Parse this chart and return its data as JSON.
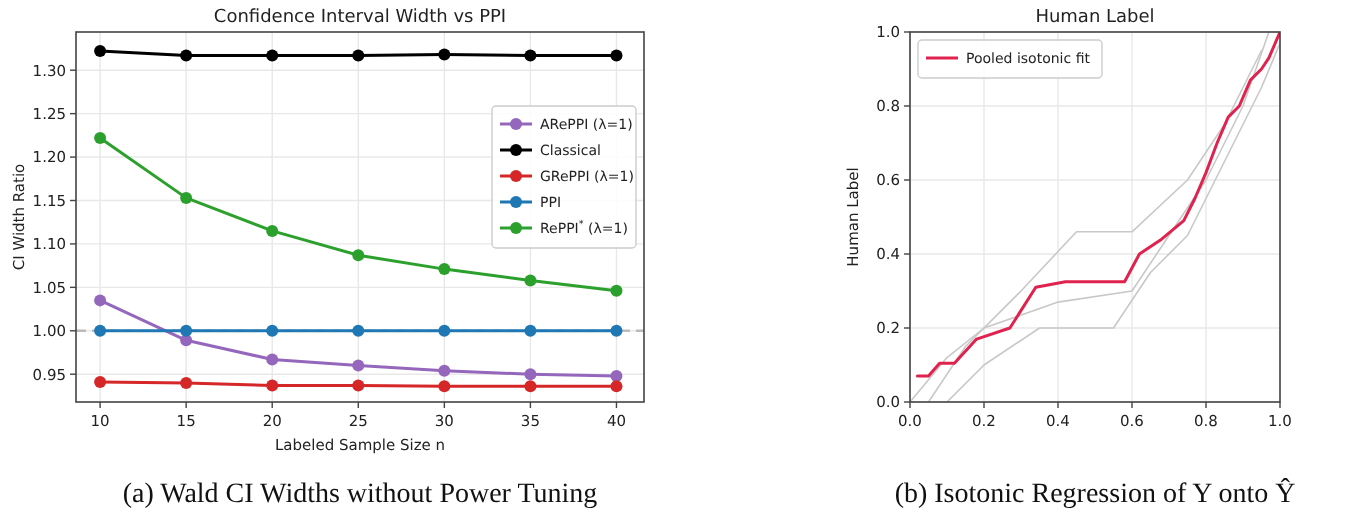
{
  "chart_data": [
    {
      "type": "line",
      "title": "Confidence Interval Width vs PPI",
      "xlabel": "Labeled Sample Size n",
      "ylabel": "CI Width Ratio",
      "x": [
        10,
        15,
        20,
        25,
        30,
        35,
        40
      ],
      "xlim": [
        8.6,
        41.6
      ],
      "ylim": [
        0.918,
        1.344
      ],
      "xticks": [
        10,
        15,
        20,
        25,
        30,
        35,
        40
      ],
      "yticks": [
        {
          "value": 0.95,
          "label": "0.95"
        },
        {
          "value": 1,
          "label": "1.00"
        },
        {
          "value": 1.05,
          "label": "1.05"
        },
        {
          "value": 1.1,
          "label": "1.10"
        },
        {
          "value": 1.15,
          "label": "1.15"
        },
        {
          "value": 1.2,
          "label": "1.20"
        },
        {
          "value": 1.25,
          "label": "1.25"
        },
        {
          "value": 1.3,
          "label": "1.30"
        }
      ],
      "grid": true,
      "marker": "circle",
      "legend": "right",
      "ref_lines": [
        {
          "axis": "y",
          "value": 1,
          "color": "#bbbbbb",
          "line_style": "dashed"
        }
      ],
      "annotations": [
        "(a) Wald CI Widths without Power Tuning"
      ],
      "series": [
        {
          "name": "ARePPI (λ=1)",
          "color": "#9467bd",
          "values": [
            1.035,
            0.989,
            0.967,
            0.96,
            0.954,
            0.95,
            0.948
          ]
        },
        {
          "name": "Classical",
          "color": "#000000",
          "values": [
            1.322,
            1.317,
            1.317,
            1.317,
            1.318,
            1.317,
            1.317
          ]
        },
        {
          "name": "GRePPI (λ=1)",
          "color": "#d62728",
          "values": [
            0.941,
            0.94,
            0.937,
            0.937,
            0.936,
            0.936,
            0.936
          ]
        },
        {
          "name": "PPI",
          "color": "#1f77b4",
          "values": [
            1,
            1,
            1,
            1,
            1,
            1,
            1
          ]
        },
        {
          "name": "RePPI$^{*}$ (λ=1)",
          "color": "#2ca02c",
          "values": [
            1.222,
            1.153,
            1.115,
            1.087,
            1.071,
            1.058,
            1.046
          ]
        }
      ]
    },
    {
      "type": "line",
      "title": "Human Label",
      "ylabel": "Human Label",
      "xlim": [
        0,
        1
      ],
      "ylim": [
        0,
        1
      ],
      "xticks": [
        {
          "value": 0,
          "label": "0.0"
        },
        0.2,
        0.4,
        0.6,
        0.8,
        {
          "value": 1,
          "label": "1.0"
        }
      ],
      "yticks": [
        {
          "value": 0,
          "label": "0.0"
        },
        0.2,
        0.4,
        0.6,
        0.8,
        {
          "value": 1,
          "label": "1.0"
        }
      ],
      "grid": true,
      "legend": "top left",
      "annotations": [
        "(b) Isotonic Regression of Y onto Ŷ"
      ],
      "series": [
        {
          "color": "#c8c8c8",
          "x": [
            0,
            0.1,
            0.2,
            0.4,
            0.6,
            0.7,
            0.8,
            0.9,
            0.97
          ],
          "values": [
            0,
            0.12,
            0.2,
            0.27,
            0.3,
            0.45,
            0.6,
            0.8,
            1
          ]
        },
        {
          "color": "#c8c8c8",
          "x": [
            0.05,
            0.15,
            0.3,
            0.45,
            0.6,
            0.75,
            0.85,
            0.95
          ],
          "values": [
            0,
            0.15,
            0.3,
            0.46,
            0.46,
            0.6,
            0.75,
            0.95
          ]
        },
        {
          "color": "#c8c8c8",
          "x": [
            0.1,
            0.2,
            0.35,
            0.55,
            0.65,
            0.75,
            0.85,
            0.95,
            1
          ],
          "values": [
            0,
            0.1,
            0.2,
            0.2,
            0.35,
            0.45,
            0.65,
            0.85,
            0.97
          ]
        },
        {
          "name": "Pooled isotonic fit",
          "color": "#e0234e",
          "x": [
            0.02,
            0.05,
            0.08,
            0.12,
            0.18,
            0.27,
            0.34,
            0.42,
            0.58,
            0.62,
            0.68,
            0.74,
            0.77,
            0.8,
            0.83,
            0.86,
            0.89,
            0.92,
            0.95,
            0.97,
            1
          ],
          "values": [
            0.07,
            0.07,
            0.105,
            0.105,
            0.17,
            0.2,
            0.31,
            0.325,
            0.325,
            0.4,
            0.44,
            0.49,
            0.55,
            0.62,
            0.7,
            0.77,
            0.8,
            0.87,
            0.9,
            0.93,
            1
          ]
        }
      ]
    }
  ]
}
